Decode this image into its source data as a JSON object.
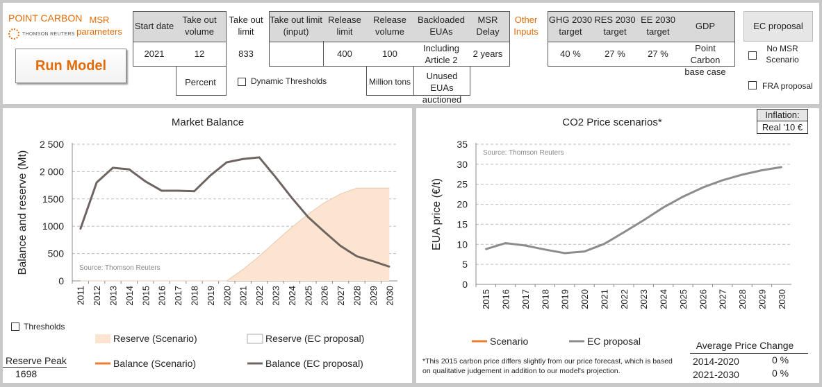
{
  "brand": {
    "name": "POINT CARBON",
    "sub": "THOMSON REUTERS",
    "msr_params": "MSR parameters"
  },
  "run_button": "Run Model",
  "params": {
    "start_date_h": "Start date",
    "start_date_v": "2021",
    "takeout_vol_h": "Take out volume",
    "takeout_vol_v": "12",
    "takeout_vol_unit": "Percent",
    "takeout_limit_h": "Take out limit",
    "takeout_limit_v": "833",
    "dynamic_thresholds": "Dynamic Thresholds",
    "takeout_limit_input_h": "Take out limit (input)",
    "takeout_limit_input_v": "",
    "release_limit_h": "Release limit",
    "release_limit_v": "400",
    "release_volume_h": "Release volume",
    "release_volume_v": "100",
    "release_unit": "Million tons",
    "backloaded_h": "Backloaded EUAs",
    "backloaded_v": "Including Article 2",
    "backloaded_note": "Unused EUAs auctioned",
    "msr_delay_h": "MSR Delay",
    "msr_delay_v": "2 years"
  },
  "other_inputs": {
    "label": "Other Inputs",
    "ghg_h": "GHG 2030 target",
    "ghg_v": "40 %",
    "res_h": "RES 2030 target",
    "res_v": "27 %",
    "ee_h": "EE 2030 target",
    "ee_v": "27 %",
    "gdp_h": "GDP",
    "gdp_v": "Point Carbon base case"
  },
  "ec_proposal_btn": "EC proposal",
  "no_msr": "No MSR Scenario",
  "fra": "FRA proposal",
  "thresholds": "Thresholds",
  "reserve_peak": {
    "label": "Reserve Peak",
    "value": "1698"
  },
  "colors": {
    "orange": "#e36c0a",
    "grey_line": "#6e6461",
    "reserve_fill": "#fce4d0",
    "scenario_line": "#ed7d31"
  },
  "chart_data": [
    {
      "type": "area",
      "title": "Market Balance",
      "ylabel": "Balance and reserve (Mt)",
      "source": "Source: Thomson Reuters",
      "ylim": [
        0,
        2500
      ],
      "yticks": [
        "2 500",
        "2 000",
        "1500",
        "1000",
        "500",
        "0"
      ],
      "categories": [
        "2011",
        "2012",
        "2013",
        "2014",
        "2015",
        "2016",
        "2017",
        "2018",
        "2019",
        "2020",
        "2021",
        "2022",
        "2023",
        "2024",
        "2025",
        "2026",
        "2027",
        "2028",
        "2029",
        "2030"
      ],
      "series": [
        {
          "name": "Reserve (Scenario)",
          "values": [
            0,
            0,
            0,
            0,
            0,
            0,
            0,
            0,
            0,
            0,
            210,
            450,
            720,
            980,
            1220,
            1430,
            1590,
            1698,
            1698,
            1698
          ]
        },
        {
          "name": "Reserve (EC proposal)",
          "values": [
            0,
            0,
            0,
            0,
            0,
            0,
            0,
            0,
            0,
            0,
            210,
            450,
            720,
            980,
            1220,
            1430,
            1590,
            1698,
            1698,
            1698
          ]
        },
        {
          "name": "Balance (Scenario)",
          "values": [
            950,
            1800,
            2070,
            2040,
            1820,
            1650,
            1650,
            1640,
            1930,
            2170,
            2230,
            2260,
            1900,
            1520,
            1170,
            900,
            640,
            450,
            360,
            260
          ]
        },
        {
          "name": "Balance (EC proposal)",
          "values": [
            950,
            1800,
            2070,
            2040,
            1820,
            1650,
            1650,
            1640,
            1930,
            2170,
            2230,
            2260,
            1900,
            1520,
            1170,
            900,
            640,
            450,
            360,
            260
          ]
        }
      ],
      "legend": [
        "Reserve (Scenario)",
        "Reserve (EC proposal)",
        "Balance (Scenario)",
        "Balance (EC proposal)"
      ]
    },
    {
      "type": "line",
      "title": "CO2 Price scenarios*",
      "ylabel": "EUA price (€/t)",
      "source": "Source: Thomson Reuters",
      "ylim": [
        0,
        35
      ],
      "yticks": [
        "35",
        "30",
        "25",
        "20",
        "15",
        "10",
        "5",
        "0"
      ],
      "categories": [
        "2015",
        "2016",
        "2017",
        "2018",
        "2019",
        "2020",
        "2021",
        "2022",
        "2023",
        "2024",
        "2025",
        "2026",
        "2027",
        "2028",
        "2029",
        "2030"
      ],
      "series": [
        {
          "name": "Scenario",
          "values": [
            8.8,
            10.3,
            9.7,
            8.7,
            7.8,
            8.2,
            10.1,
            13.0,
            16.0,
            19.2,
            21.9,
            24.2,
            26.0,
            27.4,
            28.5,
            29.3
          ]
        },
        {
          "name": "EC proposal",
          "values": [
            8.8,
            10.3,
            9.7,
            8.7,
            7.8,
            8.2,
            10.1,
            13.0,
            16.0,
            19.2,
            21.9,
            24.2,
            26.0,
            27.4,
            28.5,
            29.3
          ]
        }
      ],
      "legend": [
        "Scenario",
        "EC proposal"
      ]
    }
  ],
  "inflation": {
    "label": "Inflation:",
    "value": "Real '10 €"
  },
  "footnote": "*This 2015 carbon price differs slightly from our price forecast, which is based on qualitative judgement in addition to our model's projection.",
  "avg_price": {
    "title": "Average Price Change",
    "rows": [
      {
        "period": "2014-2020",
        "value": "0 %"
      },
      {
        "period": "2021-2030",
        "value": "0 %"
      }
    ]
  }
}
